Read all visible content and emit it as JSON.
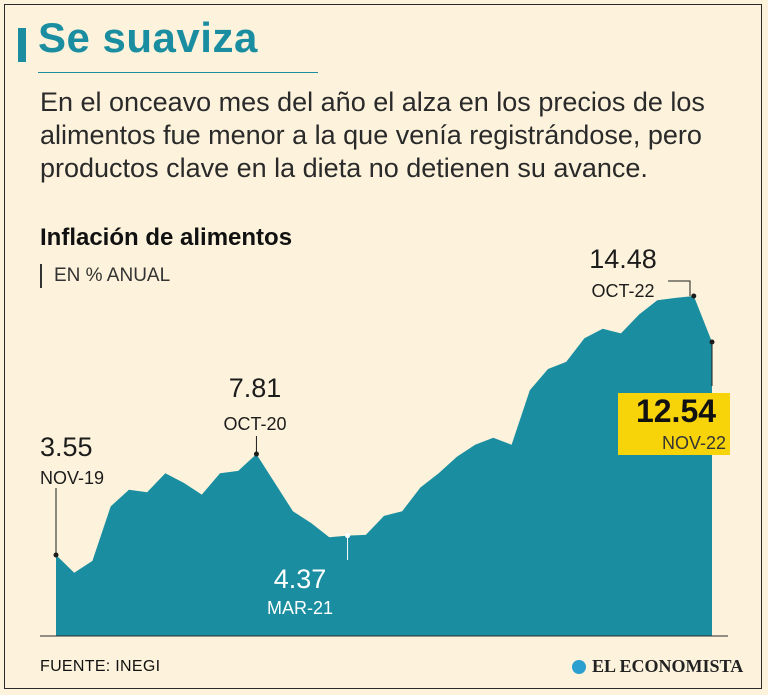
{
  "header": {
    "title": "Se suaviza",
    "deck": "En el onceavo mes del año el alza en los precios de los alimentos fue menor a la que venía registrándose, pero productos clave en la dieta no detienen su avance."
  },
  "footer": {
    "source": "FUENTE: INEGI",
    "brand": "EL ECONOMISTA"
  },
  "chart_data": {
    "type": "area",
    "title": "Inflación de alimentos",
    "unit": "EN % ANUAL",
    "fill_color": "#1a8ea0",
    "highlight_color": "#f7d40a",
    "x": [
      "2019-11",
      "2019-12",
      "2020-01",
      "2020-02",
      "2020-03",
      "2020-04",
      "2020-05",
      "2020-06",
      "2020-07",
      "2020-08",
      "2020-09",
      "2020-10",
      "2020-11",
      "2020-12",
      "2021-01",
      "2021-02",
      "2021-03",
      "2021-04",
      "2021-05",
      "2021-06",
      "2021-07",
      "2021-08",
      "2021-09",
      "2021-10",
      "2021-11",
      "2021-12",
      "2022-01",
      "2022-02",
      "2022-03",
      "2022-04",
      "2022-05",
      "2022-06",
      "2022-07",
      "2022-08",
      "2022-09",
      "2022-10",
      "2022-11"
    ],
    "values": [
      3.55,
      2.8,
      3.3,
      5.6,
      6.3,
      6.2,
      7.0,
      6.6,
      6.1,
      7.0,
      7.1,
      7.81,
      6.6,
      5.4,
      4.9,
      4.3,
      4.37,
      4.4,
      5.2,
      5.4,
      6.4,
      7.0,
      7.7,
      8.2,
      8.5,
      8.2,
      10.5,
      11.4,
      11.7,
      12.7,
      13.1,
      12.9,
      13.7,
      14.3,
      14.4,
      14.48,
      12.54
    ],
    "annotations": [
      {
        "index": 0,
        "value": "3.55",
        "label": "NOV-19"
      },
      {
        "index": 11,
        "value": "7.81",
        "label": "OCT-20"
      },
      {
        "index": 16,
        "value": "4.37",
        "label": "MAR-21"
      },
      {
        "index": 35,
        "value": "14.48",
        "label": "OCT-22"
      },
      {
        "index": 36,
        "value": "12.54",
        "label": "NOV-22"
      }
    ],
    "ylim": [
      0,
      15
    ],
    "grid": false
  }
}
